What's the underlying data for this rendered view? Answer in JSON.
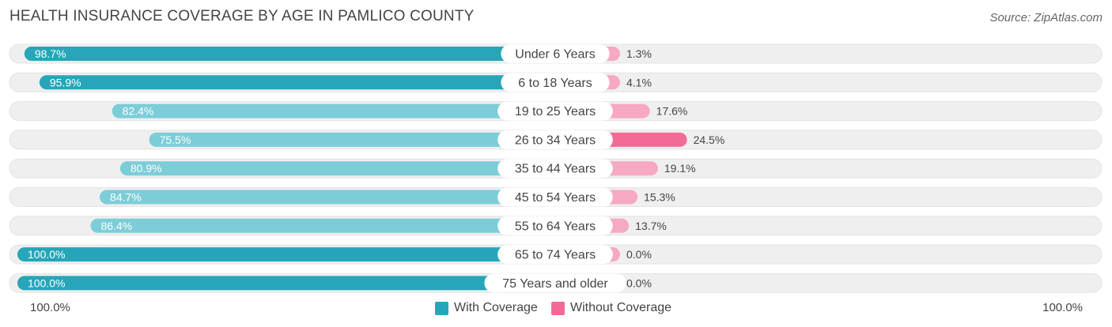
{
  "title": "HEALTH INSURANCE COVERAGE BY AGE IN PAMLICO COUNTY",
  "source": "Source: ZipAtlas.com",
  "colors": {
    "with_dark": "#26a6b8",
    "with_light": "#7ccdd8",
    "without_dark": "#f26b95",
    "without_light": "#f7a8c2",
    "track": "#efefef"
  },
  "chart_data": {
    "type": "bar",
    "orientation": "horizontal-diverging",
    "categories": [
      "Under 6 Years",
      "6 to 18 Years",
      "19 to 25 Years",
      "26 to 34 Years",
      "35 to 44 Years",
      "45 to 54 Years",
      "55 to 64 Years",
      "65 to 74 Years",
      "75 Years and older"
    ],
    "series": [
      {
        "name": "With Coverage",
        "values": [
          98.7,
          95.9,
          82.4,
          75.5,
          80.9,
          84.7,
          86.4,
          100.0,
          100.0
        ],
        "labels": [
          "98.7%",
          "95.9%",
          "82.4%",
          "75.5%",
          "80.9%",
          "84.7%",
          "86.4%",
          "100.0%",
          "100.0%"
        ]
      },
      {
        "name": "Without Coverage",
        "values": [
          1.3,
          4.1,
          17.6,
          24.5,
          19.1,
          15.3,
          13.7,
          0.0,
          0.0
        ],
        "labels": [
          "1.3%",
          "4.1%",
          "17.6%",
          "24.5%",
          "19.1%",
          "15.3%",
          "13.7%",
          "0.0%",
          "0.0%"
        ]
      }
    ],
    "xlim": [
      0,
      100
    ],
    "axis_left_label": "100.0%",
    "axis_right_label": "100.0%",
    "legend": [
      "With Coverage",
      "Without Coverage"
    ]
  }
}
